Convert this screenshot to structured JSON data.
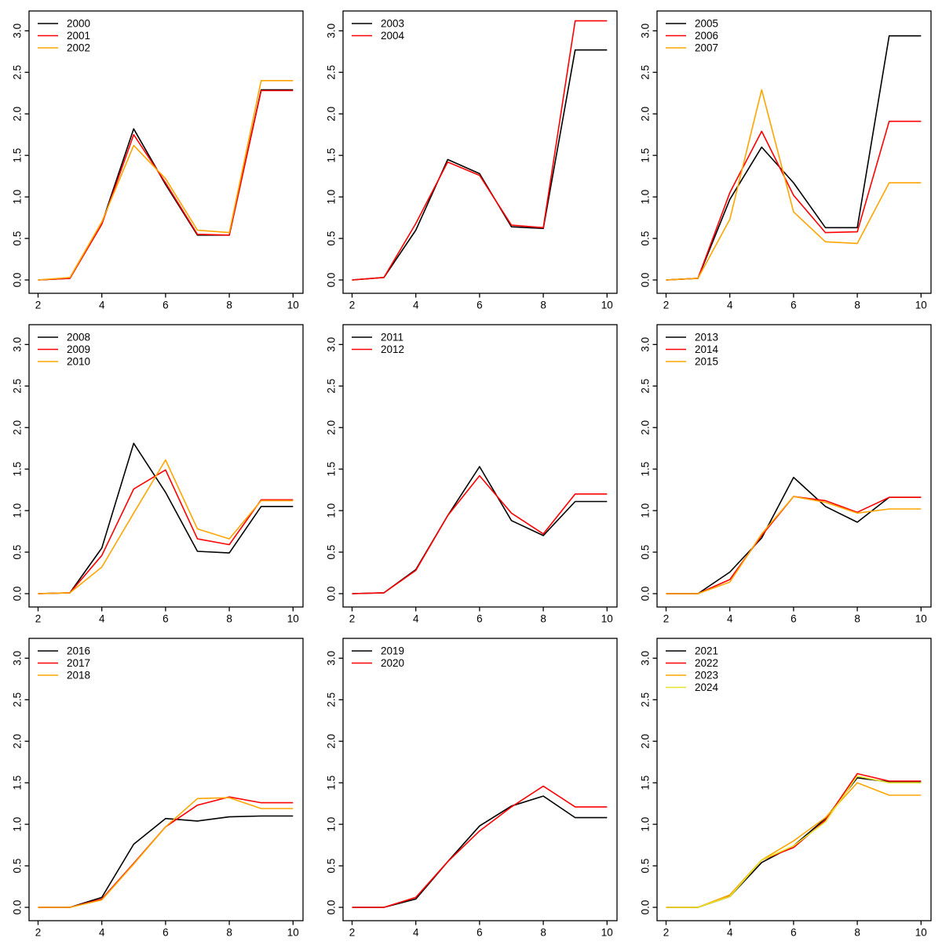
{
  "page": {
    "background": "#ffffff",
    "layout": "3x3-grid-of-line-charts",
    "palette": {
      "black": "#000000",
      "red": "#FF0000",
      "orange": "#FFA500",
      "yellow": "#E3E32A"
    }
  },
  "chart_data": [
    {
      "type": "line",
      "title": "",
      "xlabel": "",
      "ylabel": "",
      "x": [
        2,
        3,
        4,
        5,
        6,
        7,
        8,
        9,
        10
      ],
      "xlim": [
        2,
        10
      ],
      "ylim": [
        0.0,
        3.15
      ],
      "x_ticks": [
        2,
        4,
        6,
        8,
        10
      ],
      "y_ticks": [
        0.0,
        0.5,
        1.0,
        1.5,
        2.0,
        2.5,
        3.0
      ],
      "grid": false,
      "legend_position": "top-left",
      "series": [
        {
          "name": "2000",
          "color": "#000000",
          "values": [
            0.0,
            0.02,
            0.68,
            1.82,
            1.15,
            0.54,
            0.54,
            2.29,
            2.29
          ]
        },
        {
          "name": "2001",
          "color": "#FF0000",
          "values": [
            0.0,
            0.02,
            0.67,
            1.75,
            1.17,
            0.55,
            0.54,
            2.28,
            2.28
          ]
        },
        {
          "name": "2002",
          "color": "#FFA500",
          "values": [
            0.0,
            0.03,
            0.7,
            1.62,
            1.22,
            0.6,
            0.57,
            2.4,
            2.4
          ]
        }
      ]
    },
    {
      "type": "line",
      "title": "",
      "xlabel": "",
      "ylabel": "",
      "x": [
        2,
        3,
        4,
        5,
        6,
        7,
        8,
        9,
        10
      ],
      "xlim": [
        2,
        10
      ],
      "ylim": [
        0.0,
        3.15
      ],
      "x_ticks": [
        2,
        4,
        6,
        8,
        10
      ],
      "y_ticks": [
        0.0,
        0.5,
        1.0,
        1.5,
        2.0,
        2.5,
        3.0
      ],
      "grid": false,
      "legend_position": "top-left",
      "series": [
        {
          "name": "2003",
          "color": "#000000",
          "values": [
            0.0,
            0.03,
            0.6,
            1.45,
            1.28,
            0.64,
            0.62,
            2.77,
            2.77
          ]
        },
        {
          "name": "2004",
          "color": "#FF0000",
          "values": [
            0.0,
            0.03,
            0.68,
            1.42,
            1.26,
            0.66,
            0.63,
            3.12,
            3.12
          ]
        }
      ]
    },
    {
      "type": "line",
      "title": "",
      "xlabel": "",
      "ylabel": "",
      "x": [
        2,
        3,
        4,
        5,
        6,
        7,
        8,
        9,
        10
      ],
      "xlim": [
        2,
        10
      ],
      "ylim": [
        0.0,
        3.15
      ],
      "x_ticks": [
        2,
        4,
        6,
        8,
        10
      ],
      "y_ticks": [
        0.0,
        0.5,
        1.0,
        1.5,
        2.0,
        2.5,
        3.0
      ],
      "grid": false,
      "legend_position": "top-left",
      "series": [
        {
          "name": "2005",
          "color": "#000000",
          "values": [
            0.0,
            0.02,
            0.97,
            1.6,
            1.17,
            0.63,
            0.63,
            2.94,
            2.94
          ]
        },
        {
          "name": "2006",
          "color": "#FF0000",
          "values": [
            0.0,
            0.02,
            1.05,
            1.79,
            1.02,
            0.57,
            0.58,
            1.91,
            1.91
          ]
        },
        {
          "name": "2007",
          "color": "#FFA500",
          "values": [
            0.0,
            0.02,
            0.73,
            2.29,
            0.82,
            0.46,
            0.44,
            1.17,
            1.17
          ]
        }
      ]
    },
    {
      "type": "line",
      "title": "",
      "xlabel": "",
      "ylabel": "",
      "x": [
        2,
        3,
        4,
        5,
        6,
        7,
        8,
        9,
        10
      ],
      "xlim": [
        2,
        10
      ],
      "ylim": [
        0.0,
        3.15
      ],
      "x_ticks": [
        2,
        4,
        6,
        8,
        10
      ],
      "y_ticks": [
        0.0,
        0.5,
        1.0,
        1.5,
        2.0,
        2.5,
        3.0
      ],
      "grid": false,
      "legend_position": "top-left",
      "series": [
        {
          "name": "2008",
          "color": "#000000",
          "values": [
            0.0,
            0.01,
            0.55,
            1.81,
            1.22,
            0.51,
            0.49,
            1.05,
            1.05
          ]
        },
        {
          "name": "2009",
          "color": "#FF0000",
          "values": [
            0.0,
            0.01,
            0.46,
            1.26,
            1.49,
            0.66,
            0.59,
            1.13,
            1.13
          ]
        },
        {
          "name": "2010",
          "color": "#FFA500",
          "values": [
            0.0,
            0.01,
            0.32,
            0.97,
            1.61,
            0.78,
            0.66,
            1.12,
            1.12
          ]
        }
      ]
    },
    {
      "type": "line",
      "title": "",
      "xlabel": "",
      "ylabel": "",
      "x": [
        2,
        3,
        4,
        5,
        6,
        7,
        8,
        9,
        10
      ],
      "xlim": [
        2,
        10
      ],
      "ylim": [
        0.0,
        3.15
      ],
      "x_ticks": [
        2,
        4,
        6,
        8,
        10
      ],
      "y_ticks": [
        0.0,
        0.5,
        1.0,
        1.5,
        2.0,
        2.5,
        3.0
      ],
      "grid": false,
      "legend_position": "top-left",
      "series": [
        {
          "name": "2011",
          "color": "#000000",
          "values": [
            0.0,
            0.01,
            0.29,
            0.94,
            1.53,
            0.88,
            0.7,
            1.11,
            1.11
          ]
        },
        {
          "name": "2012",
          "color": "#FF0000",
          "values": [
            0.0,
            0.01,
            0.28,
            0.94,
            1.42,
            0.97,
            0.72,
            1.2,
            1.2
          ]
        }
      ]
    },
    {
      "type": "line",
      "title": "",
      "xlabel": "",
      "ylabel": "",
      "x": [
        2,
        3,
        4,
        5,
        6,
        7,
        8,
        9,
        10
      ],
      "xlim": [
        2,
        10
      ],
      "ylim": [
        0.0,
        3.15
      ],
      "x_ticks": [
        2,
        4,
        6,
        8,
        10
      ],
      "y_ticks": [
        0.0,
        0.5,
        1.0,
        1.5,
        2.0,
        2.5,
        3.0
      ],
      "grid": false,
      "legend_position": "top-left",
      "series": [
        {
          "name": "2013",
          "color": "#000000",
          "values": [
            0.0,
            0.0,
            0.26,
            0.67,
            1.4,
            1.05,
            0.86,
            1.16,
            1.16
          ]
        },
        {
          "name": "2014",
          "color": "#FF0000",
          "values": [
            0.0,
            0.0,
            0.17,
            0.7,
            1.17,
            1.12,
            0.98,
            1.16,
            1.16
          ]
        },
        {
          "name": "2015",
          "color": "#FFA500",
          "values": [
            0.0,
            0.0,
            0.14,
            0.72,
            1.17,
            1.1,
            0.97,
            1.02,
            1.02
          ]
        }
      ]
    },
    {
      "type": "line",
      "title": "",
      "xlabel": "",
      "ylabel": "",
      "x": [
        2,
        3,
        4,
        5,
        6,
        7,
        8,
        9,
        10
      ],
      "xlim": [
        2,
        10
      ],
      "ylim": [
        0.0,
        3.15
      ],
      "x_ticks": [
        2,
        4,
        6,
        8,
        10
      ],
      "y_ticks": [
        0.0,
        0.5,
        1.0,
        1.5,
        2.0,
        2.5,
        3.0
      ],
      "grid": false,
      "legend_position": "top-left",
      "series": [
        {
          "name": "2016",
          "color": "#000000",
          "values": [
            0.0,
            0.0,
            0.12,
            0.76,
            1.07,
            1.04,
            1.09,
            1.1,
            1.1
          ]
        },
        {
          "name": "2017",
          "color": "#FF0000",
          "values": [
            0.0,
            0.0,
            0.1,
            0.53,
            0.97,
            1.23,
            1.33,
            1.26,
            1.26
          ]
        },
        {
          "name": "2018",
          "color": "#FFA500",
          "values": [
            0.0,
            0.0,
            0.09,
            0.52,
            0.97,
            1.31,
            1.32,
            1.19,
            1.19
          ]
        }
      ]
    },
    {
      "type": "line",
      "title": "",
      "xlabel": "",
      "ylabel": "",
      "x": [
        2,
        3,
        4,
        5,
        6,
        7,
        8,
        9,
        10
      ],
      "xlim": [
        2,
        10
      ],
      "ylim": [
        0.0,
        3.15
      ],
      "x_ticks": [
        2,
        4,
        6,
        8,
        10
      ],
      "y_ticks": [
        0.0,
        0.5,
        1.0,
        1.5,
        2.0,
        2.5,
        3.0
      ],
      "grid": false,
      "legend_position": "top-left",
      "series": [
        {
          "name": "2019",
          "color": "#000000",
          "values": [
            0.0,
            0.0,
            0.1,
            0.55,
            0.98,
            1.22,
            1.34,
            1.08,
            1.08
          ]
        },
        {
          "name": "2020",
          "color": "#FF0000",
          "values": [
            0.0,
            0.0,
            0.12,
            0.55,
            0.92,
            1.21,
            1.46,
            1.21,
            1.21
          ]
        }
      ]
    },
    {
      "type": "line",
      "title": "",
      "xlabel": "",
      "ylabel": "",
      "x": [
        2,
        3,
        4,
        5,
        6,
        7,
        8,
        9,
        10
      ],
      "xlim": [
        2,
        10
      ],
      "ylim": [
        0.0,
        3.15
      ],
      "x_ticks": [
        2,
        4,
        6,
        8,
        10
      ],
      "y_ticks": [
        0.0,
        0.5,
        1.0,
        1.5,
        2.0,
        2.5,
        3.0
      ],
      "grid": false,
      "legend_position": "top-left",
      "series": [
        {
          "name": "2021",
          "color": "#000000",
          "values": [
            0.0,
            0.0,
            0.13,
            0.54,
            0.74,
            1.07,
            1.56,
            1.51,
            1.51
          ]
        },
        {
          "name": "2022",
          "color": "#FF0000",
          "values": [
            0.0,
            0.0,
            0.14,
            0.57,
            0.72,
            1.05,
            1.61,
            1.52,
            1.52
          ]
        },
        {
          "name": "2023",
          "color": "#FFA500",
          "values": [
            0.0,
            0.0,
            0.15,
            0.57,
            0.8,
            1.08,
            1.5,
            1.35,
            1.35
          ]
        },
        {
          "name": "2024",
          "color": "#E3E32A",
          "values": [
            0.0,
            0.0,
            0.13,
            0.57,
            0.74,
            1.03,
            1.58,
            1.5,
            1.5
          ]
        }
      ]
    }
  ]
}
